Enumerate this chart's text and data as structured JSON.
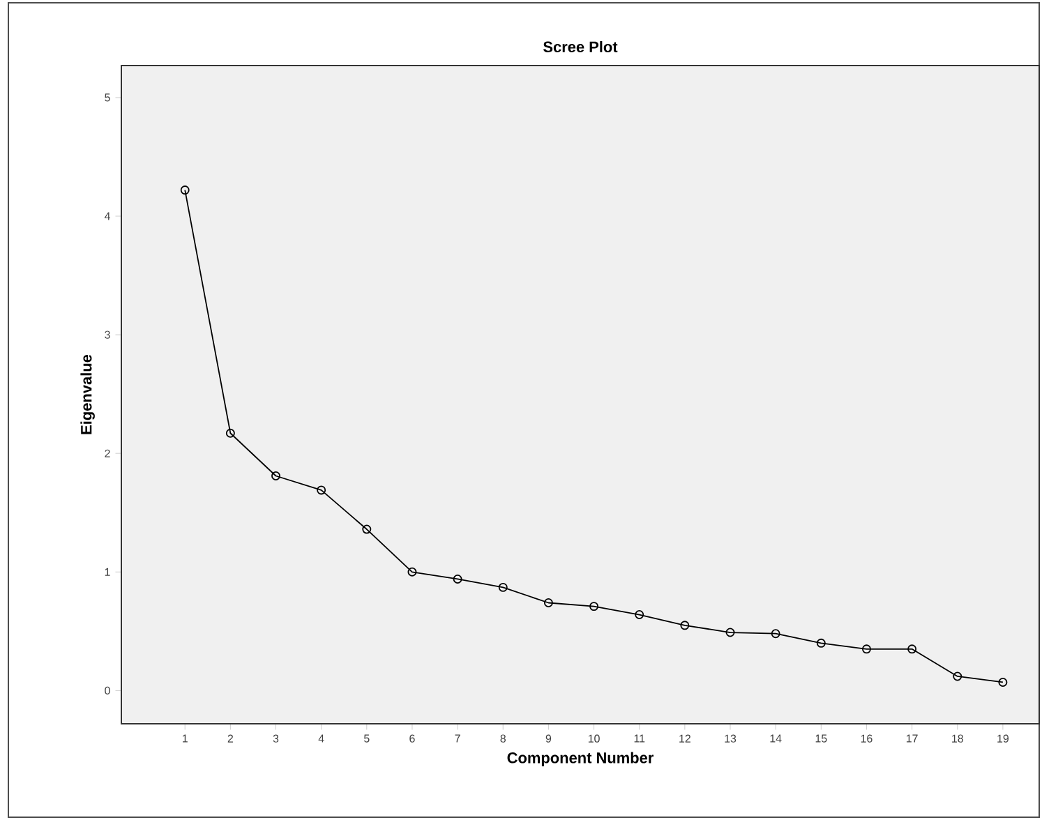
{
  "chart_data": {
    "type": "line",
    "title": "Scree Plot",
    "xlabel": "Component Number",
    "ylabel": "Eigenvalue",
    "x": [
      1,
      2,
      3,
      4,
      5,
      6,
      7,
      8,
      9,
      10,
      11,
      12,
      13,
      14,
      15,
      16,
      17,
      18,
      19
    ],
    "series": [
      {
        "color": "#000000",
        "values": [
          4.22,
          2.17,
          1.81,
          1.69,
          1.36,
          1.0,
          0.94,
          0.87,
          0.74,
          0.71,
          0.64,
          0.55,
          0.49,
          0.48,
          0.4,
          0.35,
          0.35,
          0.12,
          0.07
        ]
      }
    ],
    "xlim": [
      -0.4,
      19.8
    ],
    "xticks": [
      1,
      2,
      3,
      4,
      5,
      6,
      7,
      8,
      9,
      10,
      11,
      12,
      13,
      14,
      15,
      16,
      17,
      18,
      19
    ],
    "ylim": [
      -0.28,
      5.27
    ],
    "yticks": [
      0,
      1,
      2,
      3,
      4,
      5
    ],
    "marker": "circle",
    "line_style": "solid"
  }
}
